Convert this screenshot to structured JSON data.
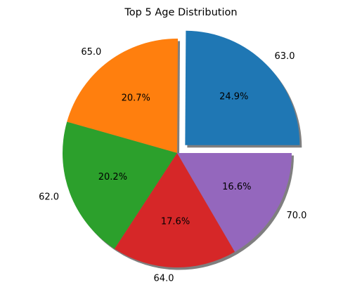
{
  "chart_data": {
    "type": "pie",
    "title": "Top 5 Age Distribution",
    "slices": [
      {
        "label": "63.0",
        "value": 24.9,
        "pct_label": "24.9%",
        "color": "#1f77b4",
        "exploded": true
      },
      {
        "label": "65.0",
        "value": 20.7,
        "pct_label": "20.7%",
        "color": "#ff7f0e",
        "exploded": false
      },
      {
        "label": "62.0",
        "value": 20.2,
        "pct_label": "20.2%",
        "color": "#2ca02c",
        "exploded": false
      },
      {
        "label": "64.0",
        "value": 17.6,
        "pct_label": "17.6%",
        "color": "#d62728",
        "exploded": false
      },
      {
        "label": "70.0",
        "value": 16.6,
        "pct_label": "16.6%",
        "color": "#9467bd",
        "exploded": false
      }
    ],
    "start_angle_deg": 0,
    "direction": "counterclockwise",
    "shadow": true,
    "legend": "none"
  }
}
